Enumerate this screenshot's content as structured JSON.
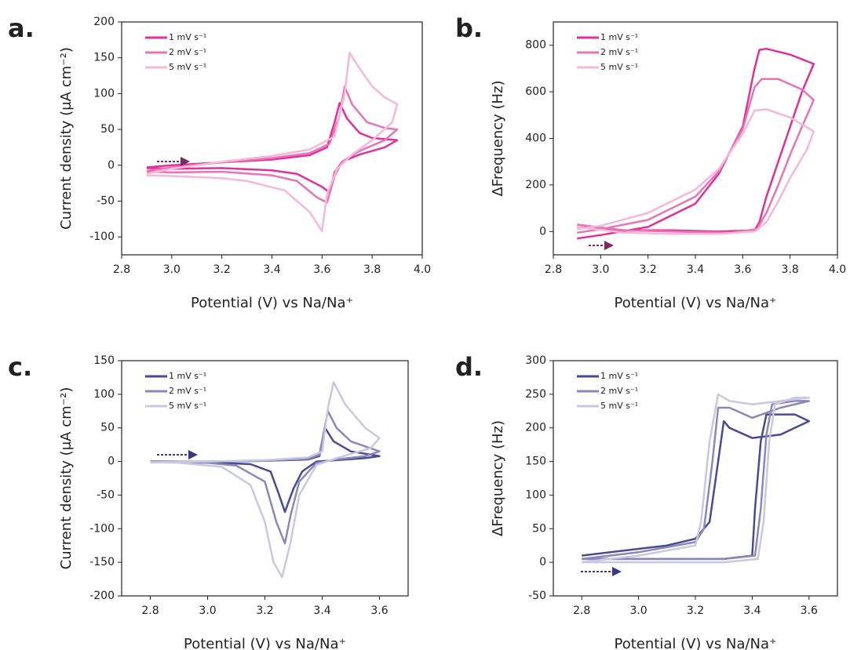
{
  "chart_data": [
    {
      "type": "line",
      "label": "a.",
      "xlabel": "Potential (V) vs Na/Na⁺",
      "ylabel": "Current density (μA cm⁻²)",
      "xlim": [
        2.8,
        4.0
      ],
      "xticks": [
        2.8,
        {
          "value": 3,
          "label": "3.0"
        },
        3.2,
        3.4,
        3.6,
        3.8,
        {
          "value": 4,
          "label": "4.0"
        }
      ],
      "ylim": [
        -125,
        200
      ],
      "yticks": [
        -100,
        -50,
        0,
        50,
        100,
        150,
        200
      ],
      "legend": "upper left",
      "series": [
        {
          "name": "1 mV s⁻¹",
          "color": "#e0309a",
          "x": [
            2.9,
            3.0,
            3.2,
            3.4,
            3.55,
            3.62,
            3.65,
            3.67,
            3.7,
            3.75,
            3.8,
            3.9,
            3.85,
            3.75,
            3.68,
            3.65,
            3.63,
            3.6,
            3.5,
            3.4,
            3.2,
            3.0,
            2.9
          ],
          "values": [
            -3,
            0,
            4,
            8,
            14,
            25,
            60,
            87,
            65,
            45,
            38,
            35,
            25,
            15,
            5,
            -10,
            -38,
            -30,
            -12,
            -7,
            -4,
            -5,
            -4
          ]
        },
        {
          "name": "2 mV s⁻¹",
          "color": "#e874b8",
          "x": [
            2.9,
            3.0,
            3.2,
            3.4,
            3.55,
            3.63,
            3.67,
            3.69,
            3.72,
            3.78,
            3.85,
            3.9,
            3.85,
            3.75,
            3.68,
            3.65,
            3.62,
            3.58,
            3.5,
            3.4,
            3.2,
            3.0,
            2.9
          ],
          "values": [
            -8,
            -3,
            4,
            10,
            17,
            30,
            70,
            110,
            85,
            60,
            52,
            50,
            35,
            20,
            5,
            -15,
            -52,
            -45,
            -22,
            -14,
            -9,
            -10,
            -9
          ]
        },
        {
          "name": "5 mV s⁻¹",
          "color": "#f5b8d8",
          "x": [
            2.9,
            3.0,
            3.2,
            3.4,
            3.55,
            3.65,
            3.69,
            3.71,
            3.75,
            3.8,
            3.85,
            3.9,
            3.88,
            3.8,
            3.72,
            3.66,
            3.62,
            3.6,
            3.55,
            3.45,
            3.3,
            3.2,
            3.0,
            2.9
          ],
          "values": [
            -12,
            -5,
            5,
            13,
            22,
            40,
            100,
            157,
            135,
            110,
            95,
            85,
            60,
            35,
            15,
            -5,
            -40,
            -92,
            -65,
            -35,
            -22,
            -18,
            -15,
            -14
          ]
        }
      ]
    },
    {
      "type": "line",
      "label": "b.",
      "xlabel": "Potential (V) vs Na/Na⁺",
      "ylabel": "ΔFrequency (Hz)",
      "xlim": [
        2.8,
        4.0
      ],
      "xticks": [
        2.8,
        {
          "value": 3,
          "label": "3.0"
        },
        3.2,
        3.4,
        3.6,
        3.8,
        {
          "value": 4,
          "label": "4.0"
        }
      ],
      "ylim": [
        -100,
        900
      ],
      "yticks": [
        0,
        200,
        400,
        600,
        800
      ],
      "legend": "upper left",
      "series": [
        {
          "name": "1 mV s⁻¹",
          "color": "#e0309a",
          "x": [
            2.9,
            3.0,
            3.2,
            3.4,
            3.5,
            3.6,
            3.65,
            3.67,
            3.7,
            3.8,
            3.9,
            3.85,
            3.8,
            3.75,
            3.7,
            3.67,
            3.65,
            3.5,
            3.3,
            3.1,
            2.9
          ],
          "values": [
            -30,
            -15,
            20,
            120,
            250,
            450,
            700,
            780,
            785,
            760,
            720,
            600,
            450,
            300,
            150,
            40,
            5,
            0,
            5,
            5,
            20
          ]
        },
        {
          "name": "2 mV s⁻¹",
          "color": "#e874b8",
          "x": [
            2.9,
            3.0,
            3.2,
            3.4,
            3.5,
            3.6,
            3.65,
            3.68,
            3.75,
            3.85,
            3.9,
            3.85,
            3.8,
            3.75,
            3.7,
            3.66,
            3.55,
            3.3,
            3.1,
            2.9
          ],
          "values": [
            -5,
            10,
            50,
            150,
            260,
            440,
            620,
            655,
            655,
            610,
            565,
            450,
            330,
            200,
            80,
            10,
            -5,
            0,
            5,
            30
          ]
        },
        {
          "name": "5 mV s⁻¹",
          "color": "#f5b8d8",
          "x": [
            2.9,
            3.0,
            3.2,
            3.4,
            3.5,
            3.6,
            3.65,
            3.7,
            3.8,
            3.9,
            3.87,
            3.8,
            3.75,
            3.7,
            3.65,
            3.5,
            3.3,
            3.1,
            2.9
          ],
          "values": [
            10,
            25,
            80,
            180,
            270,
            420,
            520,
            525,
            490,
            430,
            350,
            230,
            130,
            40,
            0,
            -10,
            -10,
            -5,
            20
          ]
        }
      ]
    },
    {
      "type": "line",
      "label": "c.",
      "xlabel": "Potential (V) vs Na/Na⁺",
      "ylabel": "Current density (μA cm⁻²)",
      "xlim": [
        2.7,
        3.7
      ],
      "xticks": [
        2.8,
        {
          "value": 3,
          "label": "3.0"
        },
        3.2,
        3.4,
        3.6
      ],
      "ylim": [
        -200,
        150
      ],
      "yticks": [
        -200,
        -150,
        -100,
        -50,
        0,
        50,
        100,
        150
      ],
      "legend": "upper left",
      "series": [
        {
          "name": "1 mV s⁻¹",
          "color": "#4a4a94",
          "x": [
            2.8,
            3.0,
            3.2,
            3.35,
            3.39,
            3.41,
            3.44,
            3.5,
            3.6,
            3.55,
            3.45,
            3.38,
            3.33,
            3.3,
            3.27,
            3.25,
            3.22,
            3.15,
            3.0,
            2.8
          ],
          "values": [
            0,
            0,
            1,
            3,
            8,
            50,
            30,
            15,
            8,
            5,
            2,
            0,
            -15,
            -40,
            -75,
            -50,
            -15,
            -4,
            -1,
            -1
          ]
        },
        {
          "name": "2 mV s⁻¹",
          "color": "#8a88bb",
          "x": [
            2.8,
            3.0,
            3.2,
            3.35,
            3.39,
            3.42,
            3.45,
            3.5,
            3.6,
            3.55,
            3.45,
            3.38,
            3.32,
            3.29,
            3.27,
            3.24,
            3.2,
            3.1,
            3.0,
            2.8
          ],
          "values": [
            -1,
            0,
            1,
            4,
            10,
            75,
            50,
            30,
            15,
            8,
            3,
            -2,
            -30,
            -80,
            -122,
            -90,
            -30,
            -6,
            -2,
            -1
          ]
        },
        {
          "name": "5 mV s⁻¹",
          "color": "#c8c8e0",
          "x": [
            2.8,
            3.0,
            3.2,
            3.35,
            3.4,
            3.42,
            3.44,
            3.48,
            3.55,
            3.6,
            3.57,
            3.45,
            3.38,
            3.32,
            3.29,
            3.26,
            3.23,
            3.2,
            3.15,
            3.05,
            2.9,
            2.8
          ],
          "values": [
            -1,
            0,
            2,
            6,
            15,
            80,
            118,
            85,
            50,
            35,
            20,
            5,
            -5,
            -50,
            -120,
            -172,
            -150,
            -90,
            -35,
            -8,
            -2,
            -1
          ]
        }
      ]
    },
    {
      "type": "line",
      "label": "d.",
      "xlabel": "Potential (V) vs Na/Na⁺",
      "ylabel": "ΔFrequency (Hz)",
      "xlim": [
        2.7,
        3.7
      ],
      "xticks": [
        2.8,
        {
          "value": 3,
          "label": "3.0"
        },
        3.2,
        3.4,
        3.6
      ],
      "ylim": [
        -50,
        300
      ],
      "yticks": [
        -50,
        0,
        50,
        100,
        150,
        200,
        250,
        300
      ],
      "legend": "upper left",
      "series": [
        {
          "name": "1 mV s⁻¹",
          "color": "#4a4a94",
          "x": [
            2.8,
            3.0,
            3.1,
            3.2,
            3.25,
            3.28,
            3.3,
            3.32,
            3.4,
            3.5,
            3.6,
            3.55,
            3.45,
            3.43,
            3.41,
            3.4,
            3.3,
            3.1,
            2.9,
            2.8
          ],
          "values": [
            10,
            20,
            25,
            35,
            60,
            150,
            210,
            200,
            185,
            190,
            210,
            220,
            220,
            180,
            80,
            10,
            5,
            5,
            5,
            5
          ]
        },
        {
          "name": "2 mV s⁻¹",
          "color": "#8a88bb",
          "x": [
            2.8,
            3.0,
            3.2,
            3.23,
            3.26,
            3.28,
            3.32,
            3.4,
            3.5,
            3.6,
            3.55,
            3.47,
            3.45,
            3.43,
            3.41,
            3.3,
            3.0,
            2.8
          ],
          "values": [
            5,
            15,
            30,
            50,
            150,
            230,
            230,
            215,
            230,
            240,
            240,
            235,
            190,
            80,
            10,
            5,
            5,
            5
          ]
        },
        {
          "name": "5 mV s⁻¹",
          "color": "#c8c8e0",
          "x": [
            2.8,
            3.0,
            3.2,
            3.22,
            3.25,
            3.28,
            3.32,
            3.4,
            3.5,
            3.6,
            3.55,
            3.48,
            3.46,
            3.44,
            3.42,
            3.3,
            3.0,
            2.8
          ],
          "values": [
            0,
            10,
            25,
            60,
            180,
            250,
            240,
            235,
            240,
            245,
            245,
            235,
            180,
            60,
            5,
            0,
            0,
            0
          ]
        }
      ]
    }
  ]
}
